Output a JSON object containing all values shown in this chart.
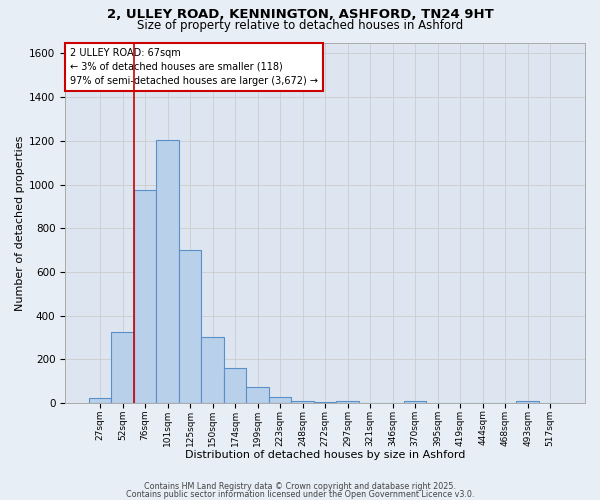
{
  "title_line1": "2, ULLEY ROAD, KENNINGTON, ASHFORD, TN24 9HT",
  "title_line2": "Size of property relative to detached houses in Ashford",
  "xlabel": "Distribution of detached houses by size in Ashford",
  "ylabel": "Number of detached properties",
  "categories": [
    "27sqm",
    "52sqm",
    "76sqm",
    "101sqm",
    "125sqm",
    "150sqm",
    "174sqm",
    "199sqm",
    "223sqm",
    "248sqm",
    "272sqm",
    "297sqm",
    "321sqm",
    "346sqm",
    "370sqm",
    "395sqm",
    "419sqm",
    "444sqm",
    "468sqm",
    "493sqm",
    "517sqm"
  ],
  "values": [
    25,
    325,
    975,
    1205,
    700,
    305,
    160,
    75,
    30,
    10,
    5,
    8,
    0,
    0,
    10,
    0,
    0,
    0,
    0,
    10,
    0
  ],
  "bar_color": "#b8d0ea",
  "bar_edge_color": "#5b8fc9",
  "vline_color": "#cc0000",
  "annotation_text": "2 ULLEY ROAD: 67sqm\n← 3% of detached houses are smaller (118)\n97% of semi-detached houses are larger (3,672) →",
  "annotation_box_color": "#ffffff",
  "annotation_box_edge_color": "#cc0000",
  "ylim": [
    0,
    1650
  ],
  "yticks": [
    0,
    200,
    400,
    600,
    800,
    1000,
    1200,
    1400,
    1600
  ],
  "grid_color": "#cccccc",
  "bg_color": "#e8eef5",
  "plot_bg_color": "#dde6f0",
  "footer_line1": "Contains HM Land Registry data © Crown copyright and database right 2025.",
  "footer_line2": "Contains public sector information licensed under the Open Government Licence v3.0.",
  "vline_bar_index": 1.5
}
